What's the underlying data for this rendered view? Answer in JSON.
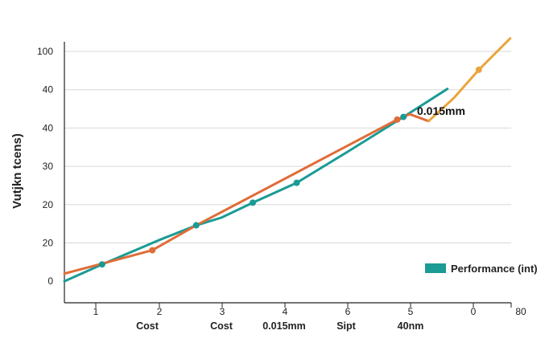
{
  "chart_data": {
    "type": "line",
    "ylabel": "Vutjkn tcens)",
    "y_ticks": [
      "0",
      "20",
      "20",
      "30",
      "40",
      "40",
      "100"
    ],
    "x_ticks": [
      "1",
      "2",
      "3",
      "4",
      "6",
      "5",
      "0",
      "80"
    ],
    "categories": [
      "Cost",
      "Cost",
      "0.015mm",
      "Sipt",
      "40nm"
    ],
    "annotation": "0.015mm",
    "legend": {
      "label": "Performance (int)",
      "placement": "bottom-right"
    },
    "grid": true,
    "series": [
      {
        "name": "Performance (int)",
        "color": "#1a9b94",
        "points": [
          [
            0.5,
            0.0
          ],
          [
            1.1,
            0.44
          ],
          [
            2.0,
            1.07
          ],
          [
            2.6,
            1.46
          ],
          [
            3.0,
            1.66
          ],
          [
            3.5,
            2.05
          ],
          [
            4.2,
            2.57
          ],
          [
            5.0,
            3.37
          ],
          [
            5.9,
            4.29
          ],
          [
            6.6,
            5.02
          ]
        ]
      },
      {
        "color": "#e06c37",
        "points": [
          [
            0.5,
            0.2
          ],
          [
            1.1,
            0.46
          ],
          [
            1.9,
            0.81
          ],
          [
            2.6,
            1.46
          ],
          [
            5.8,
            4.22
          ],
          [
            6.0,
            4.36
          ],
          [
            6.3,
            4.18
          ]
        ]
      },
      {
        "color": "#eba43c",
        "points": [
          [
            6.3,
            4.18
          ],
          [
            6.7,
            4.78
          ],
          [
            7.1,
            5.52
          ],
          [
            7.6,
            6.34
          ]
        ]
      }
    ],
    "markers": [
      {
        "series": 0,
        "x": 1.1,
        "y": 0.44
      },
      {
        "series": 0,
        "x": 2.6,
        "y": 1.46
      },
      {
        "series": 0,
        "x": 3.5,
        "y": 2.05
      },
      {
        "series": 0,
        "x": 4.2,
        "y": 2.57
      },
      {
        "series": 0,
        "x": 5.9,
        "y": 4.29
      },
      {
        "series": 1,
        "x": 1.9,
        "y": 0.81
      },
      {
        "series": 1,
        "x": 5.8,
        "y": 4.22
      },
      {
        "series": 2,
        "x": 7.1,
        "y": 5.52
      }
    ]
  }
}
